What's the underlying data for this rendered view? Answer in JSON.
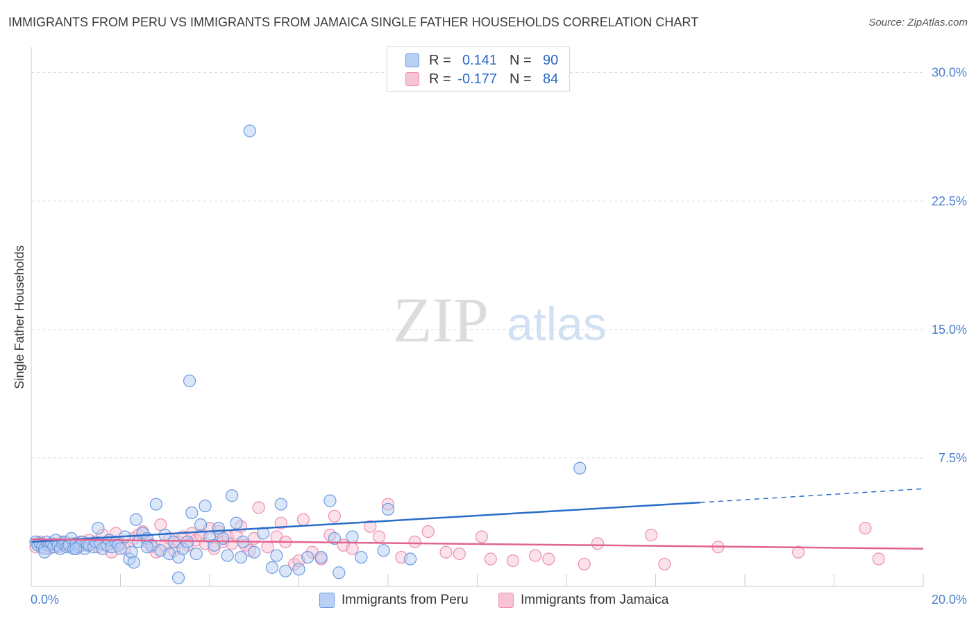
{
  "header": {
    "title": "IMMIGRANTS FROM PERU VS IMMIGRANTS FROM JAMAICA SINGLE FATHER HOUSEHOLDS CORRELATION CHART",
    "source": "Source: ZipAtlas.com"
  },
  "watermark": {
    "zip": "ZIP",
    "atlas": "atlas"
  },
  "legend": {
    "rows": [
      {
        "r_label": "R =",
        "r_value": "0.141",
        "n_label": "N =",
        "n_value": "90"
      },
      {
        "r_label": "R =",
        "r_value": "-0.177",
        "n_label": "N =",
        "n_value": "84"
      }
    ]
  },
  "bottom_legend": {
    "peru": "Immigrants from Peru",
    "jamaica": "Immigrants from Jamaica"
  },
  "colors": {
    "peru_fill": "#b8d0f4",
    "peru_stroke": "#6b9ae0",
    "peru_line": "#2a6cc9",
    "jamaica_fill": "#f8c4d4",
    "jamaica_stroke": "#ec8fae",
    "jamaica_line": "#e2638f",
    "grid": "#d9d9d9",
    "tick_text": "#4a7fd0"
  },
  "chart_data": {
    "type": "scatter",
    "title": "IMMIGRANTS FROM PERU VS IMMIGRANTS FROM JAMAICA SINGLE FATHER HOUSEHOLDS CORRELATION CHART",
    "xlabel": "",
    "ylabel": "Single Father Households",
    "xlim": [
      0,
      20
    ],
    "ylim": [
      0,
      31
    ],
    "x_tick_labels": [
      "0.0%",
      "20.0%"
    ],
    "y_ticks": [
      7.5,
      15.0,
      22.5,
      30.0
    ],
    "y_tick_labels": [
      "7.5%",
      "15.0%",
      "22.5%",
      "30.0%"
    ],
    "grid": true,
    "series": [
      {
        "name": "Immigrants from Peru",
        "r": 0.141,
        "n": 90,
        "trend": {
          "x0": 0,
          "y0": 2.6,
          "x1": 15,
          "y1": 4.9,
          "dash_to_x": 20,
          "dash_to_y": 5.7
        },
        "points": [
          [
            0.1,
            2.6
          ],
          [
            0.15,
            2.4
          ],
          [
            0.2,
            2.5
          ],
          [
            0.25,
            2.3
          ],
          [
            0.3,
            2.2
          ],
          [
            0.35,
            2.6
          ],
          [
            0.4,
            2.4
          ],
          [
            0.45,
            2.5
          ],
          [
            0.5,
            2.3
          ],
          [
            0.55,
            2.7
          ],
          [
            0.6,
            2.4
          ],
          [
            0.65,
            2.2
          ],
          [
            0.7,
            2.5
          ],
          [
            0.75,
            2.6
          ],
          [
            0.8,
            2.3
          ],
          [
            0.85,
            2.4
          ],
          [
            0.9,
            2.8
          ],
          [
            0.95,
            2.2
          ],
          [
            1.0,
            2.5
          ],
          [
            1.05,
            2.3
          ],
          [
            1.1,
            2.4
          ],
          [
            1.15,
            2.6
          ],
          [
            1.2,
            2.2
          ],
          [
            1.25,
            2.5
          ],
          [
            1.3,
            2.4
          ],
          [
            1.4,
            2.3
          ],
          [
            1.45,
            2.6
          ],
          [
            1.5,
            3.4
          ],
          [
            1.55,
            2.5
          ],
          [
            1.6,
            2.2
          ],
          [
            1.7,
            2.4
          ],
          [
            1.75,
            2.7
          ],
          [
            1.8,
            2.3
          ],
          [
            1.9,
            2.6
          ],
          [
            1.95,
            2.4
          ],
          [
            2.0,
            2.2
          ],
          [
            2.1,
            2.9
          ],
          [
            2.2,
            1.6
          ],
          [
            2.25,
            2.0
          ],
          [
            2.3,
            1.4
          ],
          [
            2.35,
            3.9
          ],
          [
            2.4,
            2.6
          ],
          [
            2.5,
            3.1
          ],
          [
            2.6,
            2.8
          ],
          [
            2.7,
            2.4
          ],
          [
            2.8,
            4.8
          ],
          [
            2.9,
            2.1
          ],
          [
            3.0,
            3.0
          ],
          [
            3.1,
            1.9
          ],
          [
            3.2,
            2.6
          ],
          [
            3.3,
            1.7
          ],
          [
            3.3,
            0.5
          ],
          [
            3.4,
            2.2
          ],
          [
            3.5,
            2.6
          ],
          [
            3.55,
            12.0
          ],
          [
            3.6,
            4.3
          ],
          [
            3.7,
            1.9
          ],
          [
            3.8,
            3.6
          ],
          [
            3.9,
            4.7
          ],
          [
            4.0,
            2.9
          ],
          [
            4.1,
            2.4
          ],
          [
            4.2,
            3.4
          ],
          [
            4.3,
            2.8
          ],
          [
            4.4,
            1.8
          ],
          [
            4.5,
            5.3
          ],
          [
            4.6,
            3.7
          ],
          [
            4.7,
            1.7
          ],
          [
            4.75,
            2.6
          ],
          [
            4.9,
            26.6
          ],
          [
            5.0,
            2.0
          ],
          [
            5.2,
            3.1
          ],
          [
            5.4,
            1.1
          ],
          [
            5.5,
            1.8
          ],
          [
            5.6,
            4.8
          ],
          [
            5.7,
            0.9
          ],
          [
            6.0,
            1.0
          ],
          [
            6.2,
            1.7
          ],
          [
            6.5,
            1.7
          ],
          [
            6.7,
            5.0
          ],
          [
            6.8,
            2.8
          ],
          [
            6.9,
            0.8
          ],
          [
            7.2,
            2.9
          ],
          [
            7.4,
            1.7
          ],
          [
            7.9,
            2.1
          ],
          [
            8.0,
            4.5
          ],
          [
            8.5,
            1.6
          ],
          [
            0.3,
            2.0
          ],
          [
            1.0,
            2.2
          ],
          [
            12.3,
            6.9
          ],
          [
            2.6,
            2.3
          ]
        ]
      },
      {
        "name": "Immigrants from Jamaica",
        "r": -0.177,
        "n": 84,
        "trend": {
          "x0": 0,
          "y0": 2.75,
          "x1": 20,
          "y1": 2.2
        },
        "points": [
          [
            0.1,
            2.3
          ],
          [
            0.2,
            2.6
          ],
          [
            0.3,
            2.4
          ],
          [
            0.4,
            2.2
          ],
          [
            0.5,
            2.5
          ],
          [
            0.6,
            2.3
          ],
          [
            0.7,
            2.6
          ],
          [
            0.8,
            2.4
          ],
          [
            0.9,
            2.5
          ],
          [
            1.0,
            2.2
          ],
          [
            1.1,
            2.6
          ],
          [
            1.2,
            2.4
          ],
          [
            1.3,
            2.7
          ],
          [
            1.4,
            2.5
          ],
          [
            1.5,
            2.3
          ],
          [
            1.6,
            3.0
          ],
          [
            1.7,
            2.4
          ],
          [
            1.8,
            2.0
          ],
          [
            1.9,
            3.1
          ],
          [
            2.0,
            2.5
          ],
          [
            2.1,
            2.2
          ],
          [
            2.3,
            2.8
          ],
          [
            2.4,
            3.0
          ],
          [
            2.5,
            3.2
          ],
          [
            2.6,
            2.6
          ],
          [
            2.7,
            2.3
          ],
          [
            2.8,
            2.0
          ],
          [
            2.9,
            3.6
          ],
          [
            3.0,
            2.4
          ],
          [
            3.1,
            2.8
          ],
          [
            3.2,
            2.1
          ],
          [
            3.3,
            2.6
          ],
          [
            3.4,
            2.9
          ],
          [
            3.5,
            2.4
          ],
          [
            3.6,
            3.1
          ],
          [
            3.7,
            2.7
          ],
          [
            3.8,
            3.0
          ],
          [
            3.9,
            2.5
          ],
          [
            4.0,
            3.4
          ],
          [
            4.1,
            2.2
          ],
          [
            4.2,
            3.2
          ],
          [
            4.3,
            2.6
          ],
          [
            4.4,
            2.9
          ],
          [
            4.5,
            2.5
          ],
          [
            4.6,
            3.0
          ],
          [
            4.7,
            3.5
          ],
          [
            4.8,
            2.4
          ],
          [
            4.9,
            2.1
          ],
          [
            5.0,
            2.8
          ],
          [
            5.1,
            4.6
          ],
          [
            5.3,
            2.3
          ],
          [
            5.5,
            2.9
          ],
          [
            5.6,
            3.7
          ],
          [
            5.7,
            2.6
          ],
          [
            5.9,
            1.3
          ],
          [
            6.0,
            1.5
          ],
          [
            6.1,
            3.9
          ],
          [
            6.3,
            2.0
          ],
          [
            6.5,
            1.6
          ],
          [
            6.7,
            3.0
          ],
          [
            6.8,
            4.1
          ],
          [
            7.0,
            2.4
          ],
          [
            7.2,
            2.2
          ],
          [
            7.6,
            3.5
          ],
          [
            7.8,
            2.9
          ],
          [
            8.0,
            4.8
          ],
          [
            8.3,
            1.7
          ],
          [
            8.6,
            2.6
          ],
          [
            8.9,
            3.2
          ],
          [
            9.3,
            2.0
          ],
          [
            9.6,
            1.9
          ],
          [
            10.1,
            2.9
          ],
          [
            10.3,
            1.6
          ],
          [
            10.8,
            1.5
          ],
          [
            11.3,
            1.8
          ],
          [
            11.6,
            1.6
          ],
          [
            12.4,
            1.3
          ],
          [
            12.7,
            2.5
          ],
          [
            13.9,
            3.0
          ],
          [
            14.2,
            1.3
          ],
          [
            15.4,
            2.3
          ],
          [
            17.2,
            2.0
          ],
          [
            18.7,
            3.4
          ],
          [
            19.0,
            1.6
          ]
        ]
      }
    ]
  }
}
